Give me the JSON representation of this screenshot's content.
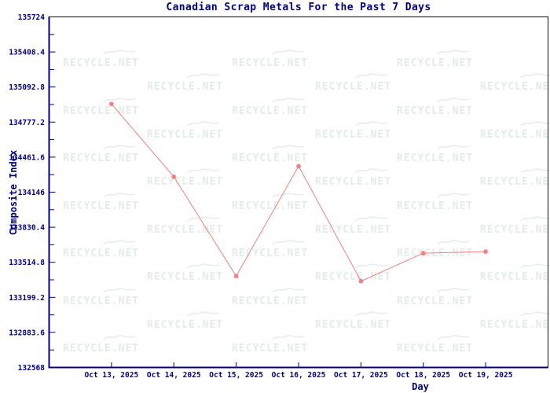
{
  "chart": {
    "title": "Canadian Scrap Metals For the Past 7 Days",
    "ylabel": "Composite Index",
    "xlabel": "Day"
  },
  "watermark": {
    "text": "RECYCLE.NET"
  },
  "colors": {
    "axis": "#000080",
    "line": "#f08080",
    "watermark": "#e3ece7",
    "background": "#ffffff"
  },
  "chart_data": {
    "type": "line",
    "title": "Canadian Scrap Metals For the Past 7 Days",
    "xlabel": "Day",
    "ylabel": "Composite Index",
    "categories": [
      "Oct 13, 2025",
      "Oct 14, 2025",
      "Oct 15, 2025",
      "Oct 16, 2025",
      "Oct 17, 2025",
      "Oct 18, 2025",
      "Oct 19, 2025"
    ],
    "series": [
      {
        "name": "Composite Index",
        "values": [
          134940,
          134285,
          133390,
          134380,
          133345,
          133597,
          133611
        ]
      }
    ],
    "ylim": [
      132568,
      135724
    ],
    "y_ticks": [
      "135724",
      "135408.4",
      "135092.8",
      "134777.2",
      "134461.6",
      "134146",
      "133830.4",
      "133514.8",
      "133199.2",
      "132883.6",
      "132568"
    ],
    "grid": false,
    "legend": false,
    "marker": "asterisk"
  }
}
